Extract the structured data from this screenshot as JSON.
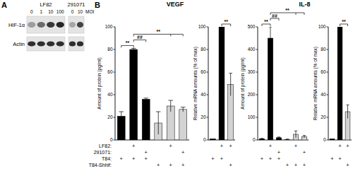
{
  "panel_labels": [
    "A",
    "B"
  ],
  "blot": {
    "groups": [
      {
        "label": "LF82",
        "lanes": [
          0,
          1,
          10,
          100
        ]
      },
      {
        "label": "291071",
        "lanes": [
          0,
          10
        ]
      }
    ],
    "unit": "MOI",
    "rows": [
      "HIF-1α",
      "Actin"
    ]
  },
  "conditions": {
    "symbol": "+",
    "rows": [
      "LF82:",
      "291071:",
      "T84:",
      "T84-Shhif:"
    ]
  },
  "chart_data": [
    {
      "type": "bar",
      "title": "VEGF",
      "y_label": "Amount of protein (pg/ml)",
      "categories": [
        null,
        null,
        null,
        null,
        null,
        null
      ],
      "values": [
        21,
        80,
        36,
        15,
        30,
        27
      ],
      "error": [
        4,
        1,
        1,
        10,
        5,
        2
      ],
      "colors": [
        "#000000",
        "#000000",
        "#000000",
        "#d3d3d3",
        "#d3d3d3",
        "#d3d3d3"
      ],
      "ylim": [
        0,
        100
      ],
      "yticks": [
        0,
        20,
        40,
        60,
        80,
        100
      ],
      "annotations": [
        {
          "text": "**",
          "from": 0,
          "to": 1
        },
        {
          "text": "##",
          "from": 1,
          "to": 2
        },
        {
          "text": "**",
          "from": 1,
          "to": [
            4,
            5
          ]
        }
      ],
      "conditions": [
        [
          false,
          true,
          false,
          false,
          true,
          false
        ],
        [
          false,
          false,
          true,
          false,
          false,
          true
        ],
        [
          true,
          true,
          true,
          false,
          false,
          false
        ],
        [
          false,
          false,
          false,
          true,
          true,
          true
        ]
      ]
    },
    {
      "type": "bar",
      "y_label": "Relative mRNA amounts (% of max)",
      "categories": [
        null,
        null,
        null
      ],
      "values": [
        1,
        100,
        49
      ],
      "error": [
        null,
        null,
        10
      ],
      "colors": [
        "#000000",
        "#000000",
        "#d3d3d3"
      ],
      "ylim": [
        0,
        100
      ],
      "yticks": [
        0,
        20,
        40,
        60,
        80,
        100
      ],
      "annotations": [
        {
          "text": "**",
          "from": 1,
          "to": 2
        }
      ],
      "conditions": [
        [
          false,
          true,
          true
        ],
        [
          false,
          false,
          false
        ],
        [
          true,
          true,
          false
        ],
        [
          false,
          false,
          true
        ]
      ]
    },
    {
      "type": "bar",
      "title": "IL-8",
      "y_label": "Amount of protein (pg/ml)",
      "categories": [
        null,
        null,
        null,
        null,
        null,
        null
      ],
      "values": [
        5,
        450,
        10,
        2,
        25,
        15
      ],
      "error": [
        2,
        50,
        3,
        2,
        15,
        5
      ],
      "colors": [
        "#000000",
        "#000000",
        "#000000",
        "#d3d3d3",
        "#d3d3d3",
        "#d3d3d3"
      ],
      "ylim": [
        0,
        500
      ],
      "yticks": [
        0,
        100,
        200,
        300,
        400,
        500
      ],
      "annotations": [
        {
          "text": "**",
          "from": 0,
          "to": 1
        },
        {
          "text": "##",
          "from": 1,
          "to": 2
        },
        {
          "text": "**",
          "from": 1,
          "to": [
            4,
            5
          ]
        }
      ],
      "conditions": [
        [
          false,
          true,
          false,
          false,
          true,
          false
        ],
        [
          false,
          false,
          true,
          false,
          false,
          true
        ],
        [
          true,
          true,
          true,
          false,
          false,
          false
        ],
        [
          false,
          false,
          false,
          true,
          true,
          true
        ]
      ]
    },
    {
      "type": "bar",
      "y_label": "Relative mRNA amounts (% of max)",
      "categories": [
        null,
        null,
        null
      ],
      "values": [
        1,
        100,
        25
      ],
      "error": [
        null,
        null,
        6
      ],
      "colors": [
        "#000000",
        "#000000",
        "#d3d3d3"
      ],
      "ylim": [
        0,
        100
      ],
      "yticks": [
        0,
        20,
        40,
        60,
        80,
        100
      ],
      "annotations": [
        {
          "text": "**",
          "from": 1,
          "to": 2
        }
      ],
      "conditions": [
        [
          false,
          true,
          true
        ],
        [
          false,
          false,
          false
        ],
        [
          true,
          true,
          false
        ],
        [
          false,
          false,
          true
        ]
      ]
    }
  ]
}
